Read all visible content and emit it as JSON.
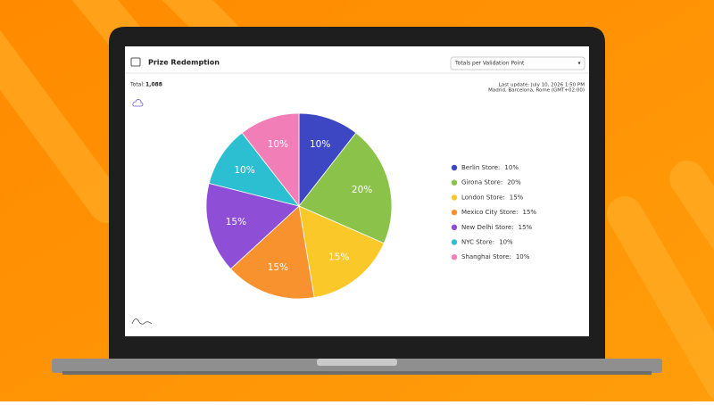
{
  "header": {
    "title": "Prize Redemption",
    "dropdown": "Totals per Validation Point"
  },
  "summary": {
    "total_label": "Total:",
    "total_value": "1,088",
    "last_update": "Last update: July 10, 2026 1:50 PM",
    "timezone": "Madrid, Barcelona, Rome (GMT+02:00)"
  },
  "chart_data": {
    "type": "pie",
    "series": [
      {
        "name": "Berlin Store:",
        "color": "#3d47c4",
        "values": [
          10
        ],
        "value_labels": [
          "10%"
        ]
      },
      {
        "name": "Girona Store:",
        "color": "#8bc34a",
        "values": [
          20
        ],
        "value_labels": [
          "20%"
        ]
      },
      {
        "name": "London Store:",
        "color": "#fbc82a",
        "values": [
          15
        ],
        "value_labels": [
          "15%"
        ]
      },
      {
        "name": "Mexico City Store:",
        "color": "#f7922f",
        "values": [
          15
        ],
        "value_labels": [
          "15%"
        ]
      },
      {
        "name": "New Delhi Store:",
        "color": "#8e4fd6",
        "values": [
          15
        ],
        "value_labels": [
          "15%"
        ]
      },
      {
        "name": "NYC Store:",
        "color": "#2bbfd1",
        "values": [
          10
        ],
        "value_labels": [
          "10%"
        ]
      },
      {
        "name": "Shanghai Store:",
        "color": "#f27eb8",
        "values": [
          10
        ],
        "value_labels": [
          "10%"
        ]
      }
    ],
    "legend": "right"
  }
}
